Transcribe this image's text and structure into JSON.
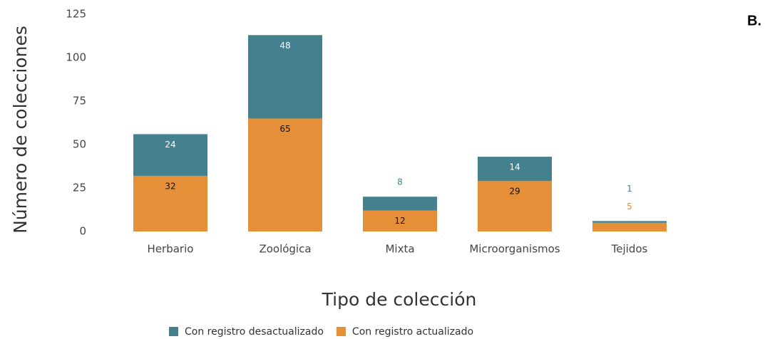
{
  "chart_data": {
    "type": "stacked_bar",
    "annotation": "B.",
    "xlabel": "Tipo de colección",
    "ylabel": "Número de colecciones",
    "categories": [
      "Herbario",
      "Zoológica",
      "Mixta",
      "Microorganismos",
      "Tejidos"
    ],
    "series": [
      {
        "name": "Con registro desactualizado",
        "color": "#45808e",
        "values": [
          24,
          48,
          8,
          14,
          1
        ]
      },
      {
        "name": "Con registro actualizado",
        "color": "#e59038",
        "values": [
          32,
          65,
          12,
          29,
          5
        ]
      }
    ],
    "ylim": [
      0,
      125
    ],
    "yticks": [
      0,
      25,
      50,
      75,
      100,
      125
    ],
    "grid": false
  }
}
